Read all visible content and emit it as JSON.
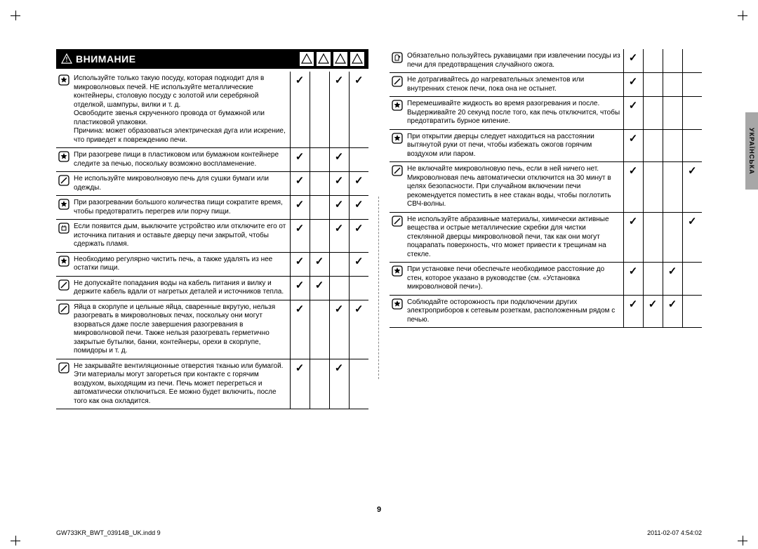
{
  "header": {
    "title": "ВНИМАНИЕ"
  },
  "sidetab": "УКРАЇНСЬКА",
  "pagenum": "9",
  "footer_left": "GW733KR_BWT_03914B_UK.indd   9",
  "footer_right": "2011-02-07   4:54:02",
  "left_rows": [
    {
      "icon": "star",
      "text": "Используйте только такую посуду, которая подходит для в микроволновых печей. НЕ используйте металлические контейнеры, столовую посуду с золотой или серебряной отделкой, шампуры, вилки и т. д.\nОсвободите звенья скрученного провода от бумажной или пластиковой упаковки.\nПричина: может образоваться электрическая дуга или искрение, что приведет к повреждению печи.",
      "c": [
        true,
        false,
        true,
        true
      ]
    },
    {
      "icon": "star",
      "text": "При разогреве пищи в пластиковом или бумажном контейнере следите за печью, поскольку возможно воспламенение.",
      "c": [
        true,
        false,
        true,
        false
      ]
    },
    {
      "icon": "ban",
      "text": "Не используйте микроволновую печь для сушки бумаги или одежды.",
      "c": [
        true,
        false,
        true,
        true
      ]
    },
    {
      "icon": "star",
      "text": "При разогревании большого количества пищи сократите время, чтобы предотвратить перегрев или порчу пищи.",
      "c": [
        true,
        false,
        true,
        true
      ]
    },
    {
      "icon": "plug",
      "text": "Если появится дым, выключите устройство или отключите его от источника питания и оставьте дверцу печи закрытой, чтобы сдержать пламя.",
      "c": [
        true,
        false,
        true,
        true
      ]
    },
    {
      "icon": "star",
      "text": "Необходимо регулярно чистить печь, а также удалять из нее остатки пищи.",
      "c": [
        true,
        true,
        false,
        true
      ]
    },
    {
      "icon": "ban",
      "text": "Не допускайте попадания воды на кабель питания и вилку и держите кабель вдали от нагретых деталей и источников тепла.",
      "c": [
        true,
        true,
        false,
        false
      ]
    },
    {
      "icon": "ban",
      "text": "Яйца в скорлупе и цельные яйца, сваренные вкрутую, нельзя разогревать в микроволновых печах, поскольку они могут взорваться даже после завершения разогревания в микроволновой печи. Также нельзя разогревать герметично закрытые бутылки, банки, контейнеры, орехи в скорлупе, помидоры и т. д.",
      "c": [
        true,
        false,
        true,
        true
      ]
    },
    {
      "icon": "ban",
      "text": "Не закрывайте вентиляционные отверстия тканью или бумагой. Эти материалы могут загореться при контакте с горячим воздухом, выходящим из печи. Печь может перегреться и автоматически отключиться. Ее можно будет включить, после того как она охладится.",
      "c": [
        true,
        false,
        true,
        false
      ]
    }
  ],
  "right_rows": [
    {
      "icon": "glove",
      "text": "Обязательно пользуйтесь рукавицами при извлечении посуды из печи для предотвращения случайного ожога.",
      "c": [
        true,
        false,
        false,
        false
      ]
    },
    {
      "icon": "ban",
      "text": "Не дотрагивайтесь до нагревательных элементов или внутренних стенок печи, пока она не остынет.",
      "c": [
        true,
        false,
        false,
        false
      ]
    },
    {
      "icon": "star",
      "text": "Перемешивайте жидкость во время разогревания и после. Выдерживайте 20 секунд после того, как печь отключится, чтобы предотвратить бурное кипение.",
      "c": [
        true,
        false,
        false,
        false
      ]
    },
    {
      "icon": "star",
      "text": "При открытии дверцы следует находиться на расстоянии вытянутой руки от печи, чтобы избежать ожогов горячим воздухом или паром.",
      "c": [
        true,
        false,
        false,
        false
      ]
    },
    {
      "icon": "ban",
      "text": "Не включайте микроволновую печь, если в ней ничего нет. Микроволновая печь автоматически отключится на 30 минут в целях безопасности. При случайном включении печи рекомендуется поместить в нее стакан воды, чтобы поглотить СВЧ-волны.",
      "c": [
        true,
        false,
        false,
        true
      ]
    },
    {
      "icon": "ban",
      "text": "Не используйте абразивные материалы, химически активные вещества и острые металлические скребки для чистки стеклянной дверцы микроволновой печи, так как они могут поцарапать поверхность, что может привести к трещинам на стекле.",
      "c": [
        true,
        false,
        false,
        true
      ]
    },
    {
      "icon": "star",
      "text": "При установке печи обеспечьте необходимое расстояние до стен, которое указано в руководстве (см. «Установка микроволновой печи»).",
      "c": [
        true,
        false,
        true,
        false
      ]
    },
    {
      "icon": "star",
      "text": "Соблюдайте осторожность при подключении других электроприборов к сетевым розеткам, расположенным рядом с печью.",
      "c": [
        true,
        true,
        true,
        false
      ]
    }
  ]
}
